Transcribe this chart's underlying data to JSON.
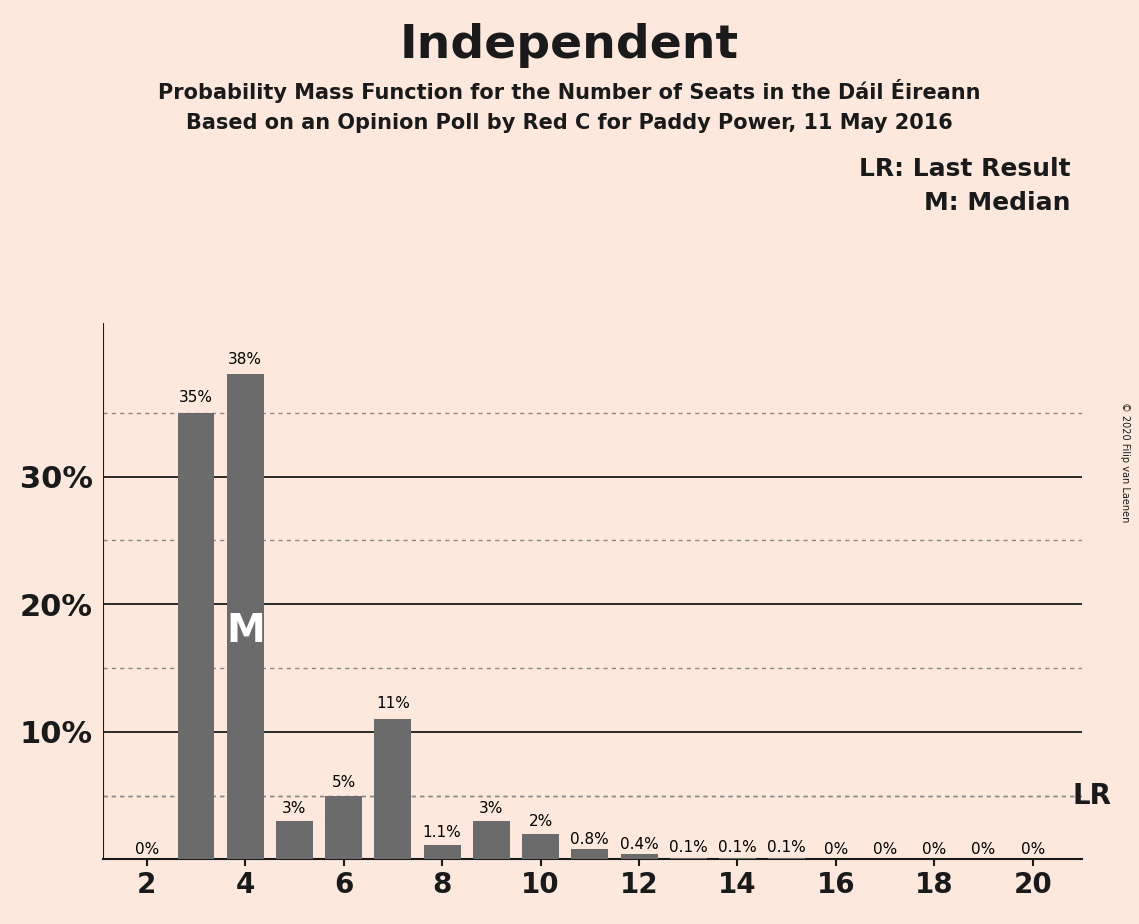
{
  "title": "Independent",
  "subtitle1": "Probability Mass Function for the Number of Seats in the Dáil Éireann",
  "subtitle2": "Based on an Opinion Poll by Red C for Paddy Power, 11 May 2016",
  "copyright": "© 2020 Filip van Laenen",
  "background_color": "#fce8dc",
  "bar_color": "#6b6b6b",
  "categories": [
    2,
    3,
    4,
    5,
    6,
    7,
    8,
    9,
    10,
    11,
    12,
    13,
    14,
    15,
    16,
    17,
    18,
    19,
    20
  ],
  "values": [
    0.0,
    35.0,
    38.0,
    3.0,
    5.0,
    11.0,
    1.1,
    3.0,
    2.0,
    0.8,
    0.4,
    0.1,
    0.1,
    0.1,
    0.0,
    0.0,
    0.0,
    0.0,
    0.0
  ],
  "labels": [
    "0%",
    "35%",
    "38%",
    "3%",
    "5%",
    "11%",
    "1.1%",
    "3%",
    "2%",
    "0.8%",
    "0.4%",
    "0.1%",
    "0.1%",
    "0.1%",
    "0%",
    "0%",
    "0%",
    "0%",
    "0%"
  ],
  "ylim": [
    0,
    42
  ],
  "solid_yticks": [
    10,
    20,
    30
  ],
  "dotted_yticks": [
    5,
    15,
    25,
    35
  ],
  "lr_line": 5.0,
  "median_bar": 4,
  "legend_lr": "LR: Last Result",
  "legend_m": "M: Median",
  "xticks": [
    2,
    4,
    6,
    8,
    10,
    12,
    14,
    16,
    18,
    20
  ],
  "bar_width": 0.75,
  "title_fontsize": 34,
  "subtitle_fontsize": 15,
  "ytick_fontsize": 22,
  "xtick_fontsize": 20,
  "label_fontsize": 11,
  "legend_fontsize": 18,
  "lr_label_fontsize": 20,
  "m_label_fontsize": 28
}
